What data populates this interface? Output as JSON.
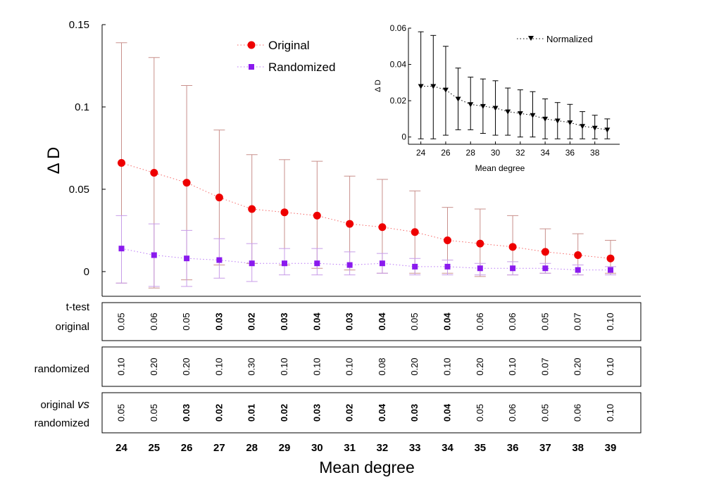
{
  "chart_data": [
    {
      "type": "scatter",
      "xlabel": "Mean degree",
      "ylabel": "Δ D",
      "ylim": [
        -0.015,
        0.15
      ],
      "y_ticks": [
        "0",
        "0.05",
        "0.1",
        "0.15"
      ],
      "x": [
        24,
        25,
        26,
        27,
        28,
        29,
        30,
        31,
        32,
        33,
        34,
        35,
        36,
        37,
        38,
        39
      ],
      "x_tick_labels": [
        "24",
        "25",
        "26",
        "27",
        "28",
        "29",
        "30",
        "31",
        "32",
        "33",
        "34",
        "35",
        "36",
        "37",
        "38",
        "39"
      ],
      "legend_placement": "top-center",
      "series": [
        {
          "name": "Original",
          "color": "#ee0000",
          "error_color": "#c9908c",
          "marker": "circle",
          "values": [
            0.066,
            0.06,
            0.054,
            0.045,
            0.038,
            0.036,
            0.034,
            0.029,
            0.027,
            0.024,
            0.019,
            0.017,
            0.015,
            0.012,
            0.01,
            0.008
          ],
          "err_upper": [
            0.139,
            0.13,
            0.113,
            0.086,
            0.071,
            0.068,
            0.067,
            0.058,
            0.056,
            0.049,
            0.039,
            0.038,
            0.034,
            0.026,
            0.023,
            0.019
          ],
          "err_lower": [
            -0.007,
            -0.01,
            -0.005,
            0.004,
            0.005,
            0.004,
            0.002,
            0.001,
            -0.001,
            -0.001,
            -0.001,
            -0.003,
            -0.002,
            -0.001,
            -0.002,
            -0.001
          ]
        },
        {
          "name": "Randomized",
          "color": "#8a1aee",
          "error_color": "#c89ce8",
          "marker": "square",
          "values": [
            0.014,
            0.01,
            0.008,
            0.007,
            0.005,
            0.005,
            0.005,
            0.004,
            0.005,
            0.003,
            0.003,
            0.002,
            0.002,
            0.002,
            0.001,
            0.001
          ],
          "err_upper": [
            0.034,
            0.029,
            0.025,
            0.02,
            0.017,
            0.014,
            0.014,
            0.012,
            0.011,
            0.008,
            0.007,
            0.005,
            0.006,
            0.005,
            0.004,
            0.003
          ],
          "err_lower": [
            -0.007,
            -0.009,
            -0.009,
            -0.004,
            -0.006,
            -0.002,
            -0.002,
            -0.002,
            -0.001,
            -0.002,
            -0.002,
            -0.002,
            -0.002,
            -0.001,
            -0.002,
            -0.002
          ]
        }
      ]
    },
    {
      "type": "scatter",
      "xlabel": "Mean degree",
      "ylabel": "Δ D",
      "ylim": [
        -0.004,
        0.06
      ],
      "xlim": [
        23,
        40
      ],
      "y_ticks": [
        "0",
        "0.02",
        "0.04",
        "0.06"
      ],
      "x_ticks": [
        24,
        26,
        28,
        30,
        32,
        34,
        36,
        38
      ],
      "x_tick_labels": [
        "24",
        "26",
        "28",
        "30",
        "32",
        "34",
        "36",
        "38"
      ],
      "x": [
        24,
        25,
        26,
        27,
        28,
        29,
        30,
        31,
        32,
        33,
        34,
        35,
        36,
        37,
        38,
        39
      ],
      "legend_placement": "top-right",
      "series": [
        {
          "name": "Normalized",
          "color": "#000000",
          "marker": "triangle-down",
          "values": [
            0.028,
            0.028,
            0.026,
            0.021,
            0.018,
            0.017,
            0.016,
            0.014,
            0.013,
            0.012,
            0.01,
            0.009,
            0.008,
            0.006,
            0.005,
            0.004
          ],
          "err_upper": [
            0.058,
            0.056,
            0.05,
            0.038,
            0.033,
            0.032,
            0.031,
            0.027,
            0.026,
            0.025,
            0.021,
            0.019,
            0.018,
            0.014,
            0.012,
            0.01
          ],
          "err_lower": [
            -0.001,
            -0.001,
            0.001,
            0.004,
            0.004,
            0.002,
            0.001,
            0.001,
            0.0,
            0.0,
            -0.001,
            -0.001,
            -0.001,
            -0.001,
            -0.001,
            -0.001
          ]
        }
      ]
    },
    {
      "type": "table",
      "rows": [
        {
          "labels": [
            "t-test",
            "original"
          ],
          "values": [
            "0.05",
            "0.06",
            "0.05",
            "0.03",
            "0.02",
            "0.03",
            "0.04",
            "0.03",
            "0.04",
            "0.05",
            "0.04",
            "0.06",
            "0.06",
            "0.05",
            "0.07",
            "0.10"
          ],
          "bold": [
            false,
            false,
            false,
            true,
            true,
            true,
            true,
            true,
            true,
            false,
            true,
            false,
            false,
            false,
            false,
            false
          ]
        },
        {
          "labels": [
            "randomized"
          ],
          "values": [
            "0.10",
            "0.20",
            "0.20",
            "0.10",
            "0.30",
            "0.10",
            "0.10",
            "0.10",
            "0.08",
            "0.20",
            "0.10",
            "0.20",
            "0.10",
            "0.07",
            "0.20",
            "0.10"
          ],
          "bold": [
            false,
            false,
            false,
            false,
            false,
            false,
            false,
            false,
            false,
            false,
            false,
            false,
            false,
            false,
            false,
            false
          ]
        },
        {
          "labels": [
            "original vs",
            "randomized"
          ],
          "label_parts": [
            "original",
            "vs"
          ],
          "values": [
            "0.05",
            "0.05",
            "0.03",
            "0.02",
            "0.01",
            "0.02",
            "0.03",
            "0.02",
            "0.04",
            "0.03",
            "0.04",
            "0.05",
            "0.06",
            "0.05",
            "0.06",
            "0.10"
          ],
          "bold": [
            false,
            false,
            true,
            true,
            true,
            true,
            true,
            true,
            true,
            true,
            true,
            false,
            false,
            false,
            false,
            false
          ]
        }
      ]
    }
  ]
}
